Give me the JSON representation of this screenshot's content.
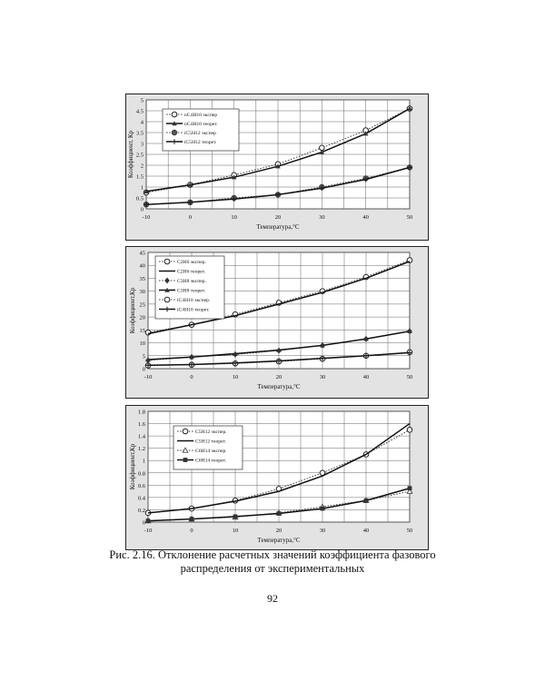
{
  "figures": [
    {
      "caption": "",
      "chart_data": {
        "type": "line",
        "x": [
          -10,
          0,
          10,
          20,
          30,
          40,
          50
        ],
        "xlim": [
          -10,
          50
        ],
        "ylim": [
          0,
          5
        ],
        "yticks": [
          0,
          0.5,
          1,
          1.5,
          2,
          2.5,
          3,
          3.5,
          4,
          4.5,
          5
        ],
        "xticklabels": [
          "-10",
          "0",
          "10",
          "20",
          "30",
          "40",
          "50"
        ],
        "yticklabels": [
          "0",
          "0.5",
          "1",
          "1.5",
          "2",
          "2.5",
          "3",
          "3.5",
          "4",
          "4.5",
          "5"
        ],
        "xlabel": "Температура,°С",
        "ylabel": "Коэффициент, Кр",
        "grid": true,
        "legend_position": "upper-left",
        "series": [
          {
            "name": "nC4H10 экспер",
            "values": [
              0.75,
              1.1,
              1.55,
              2.05,
              2.8,
              3.6,
              4.6
            ],
            "style": "dotted",
            "marker": "open-circle"
          },
          {
            "name": "nC4H10 теорет.",
            "values": [
              0.8,
              1.1,
              1.45,
              1.95,
              2.6,
              3.45,
              4.6
            ],
            "style": "solid",
            "marker": "triangle"
          },
          {
            "name": "iC5H12 экспер",
            "values": [
              0.2,
              0.3,
              0.5,
              0.65,
              1.0,
              1.4,
              1.9
            ],
            "style": "dotted",
            "marker": "filled-circle"
          },
          {
            "name": "iC5H12 теорет.",
            "values": [
              0.2,
              0.3,
              0.45,
              0.65,
              0.95,
              1.35,
              1.9
            ],
            "style": "solid",
            "marker": "plus"
          }
        ]
      }
    },
    {
      "caption": "",
      "chart_data": {
        "type": "line",
        "x": [
          -10,
          0,
          10,
          20,
          30,
          40,
          50
        ],
        "xlim": [
          -10,
          50
        ],
        "ylim": [
          0,
          45
        ],
        "yticks": [
          0,
          5,
          10,
          15,
          20,
          25,
          30,
          35,
          40,
          45
        ],
        "xticklabels": [
          "-10",
          "0",
          "10",
          "20",
          "30",
          "40",
          "50"
        ],
        "yticklabels": [
          "0",
          "5",
          "10",
          "15",
          "20",
          "25",
          "30",
          "35",
          "40",
          "45"
        ],
        "xlabel": "Температура,°С",
        "ylabel": "Коэффициент,Кр",
        "grid": true,
        "legend_position": "upper-left",
        "series": [
          {
            "name": "C2H6 экспер.",
            "values": [
              14,
              17,
              21,
              25.5,
              30,
              35.5,
              42
            ],
            "style": "dotted",
            "marker": "open-circle"
          },
          {
            "name": "C2H6 теорет.",
            "values": [
              13.5,
              17,
              20.5,
              25,
              29.5,
              35,
              41.5
            ],
            "style": "solid",
            "marker": "none"
          },
          {
            "name": "C3H8 экспер.",
            "values": [
              3.2,
              4.5,
              5.5,
              7,
              9,
              11.5,
              14.5
            ],
            "style": "dotted",
            "marker": "filled-diamond"
          },
          {
            "name": "C3H8 теорет.",
            "values": [
              3.5,
              4.5,
              5.8,
              7.2,
              9,
              11.5,
              14.5
            ],
            "style": "solid",
            "marker": "triangle"
          },
          {
            "name": "iC4H10 экспер.",
            "values": [
              1.2,
              1.5,
              2.0,
              2.8,
              3.8,
              5.0,
              6.4
            ],
            "style": "dotted",
            "marker": "open-circle"
          },
          {
            "name": "iC4H10 теорет.",
            "values": [
              1.3,
              1.6,
              2.2,
              3.0,
              4.0,
              5.0,
              6.2
            ],
            "style": "solid",
            "marker": "plus"
          }
        ]
      }
    },
    {
      "caption": "Рис. 2.16. Отклонение расчетных значений коэффициента фазового распределения от экспериментальных",
      "chart_data": {
        "type": "line",
        "x": [
          -10,
          0,
          10,
          20,
          30,
          40,
          50
        ],
        "xlim": [
          -10,
          50
        ],
        "ylim": [
          0,
          1.8
        ],
        "yticks": [
          0,
          0.2,
          0.4,
          0.6,
          0.8,
          1,
          1.2,
          1.4,
          1.6,
          1.8
        ],
        "xticklabels": [
          "-10",
          "0",
          "10",
          "20",
          "30",
          "40",
          "50"
        ],
        "yticklabels": [
          "0",
          "0.2",
          "0.4",
          "0.6",
          "0.8",
          "1",
          "1.2",
          "1.4",
          "1.6",
          "1.8"
        ],
        "xlabel": "Температура,°С",
        "ylabel": "Коэффициент,Кр",
        "grid": true,
        "legend_position": "upper-left",
        "series": [
          {
            "name": "C5H12 экспер.",
            "values": [
              0.15,
              0.22,
              0.35,
              0.54,
              0.8,
              1.1,
              1.5
            ],
            "style": "dotted",
            "marker": "open-circle"
          },
          {
            "name": "C5H12 теорет.",
            "values": [
              0.15,
              0.22,
              0.34,
              0.5,
              0.75,
              1.1,
              1.6
            ],
            "style": "solid",
            "marker": "none"
          },
          {
            "name": "C6H14 экспер.",
            "values": [
              0.02,
              0.05,
              0.08,
              0.15,
              0.25,
              0.35,
              0.5
            ],
            "style": "dotted",
            "marker": "open-triangle"
          },
          {
            "name": "C6H14 теорет.",
            "values": [
              0.02,
              0.05,
              0.09,
              0.14,
              0.22,
              0.35,
              0.55
            ],
            "style": "solid",
            "marker": "filled-square"
          }
        ]
      }
    }
  ],
  "caption": {
    "line1": "Рис. 2.16. Отклонение расчетных значений коэффициента фазового",
    "line2": "распределения от экспериментальных"
  },
  "page_number": "92"
}
